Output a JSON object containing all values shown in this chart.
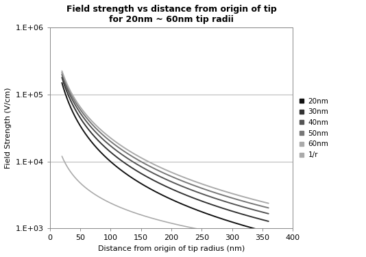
{
  "title_line1": "Field strength vs distance from origin of tip",
  "title_line2": "for 20nm ~ 60nm tip radii",
  "xlabel": "Distance from origin of tip radius (nm)",
  "ylabel": "Field Strength (V/cm)",
  "xlim": [
    0,
    400
  ],
  "ylim": [
    1000.0,
    1000000.0
  ],
  "x_ticks": [
    0,
    50,
    100,
    150,
    200,
    250,
    300,
    350,
    400
  ],
  "y_ticks": [
    1000,
    10000,
    100000,
    1000000
  ],
  "y_tick_labels": [
    "1.E+03",
    "1.E+04",
    "1.E+05",
    "1.E+06"
  ],
  "legend_labels": [
    "20nm",
    "30nm",
    "40nm",
    "50nm",
    "60nm",
    "1/r"
  ],
  "tip_radii_nm": [
    20,
    30,
    40,
    50,
    60
  ],
  "background_color": "#ffffff",
  "line_colors_dark_to_light": [
    "#111111",
    "#333333",
    "#555555",
    "#777777",
    "#aaaaaa"
  ],
  "ref_line_color": "#aaaaaa",
  "line_width": 1.4,
  "x_start": 20,
  "x_end": 360,
  "voltage_scale": 6000000,
  "ref_scale": 240000,
  "figsize": [
    5.34,
    3.75
  ],
  "dpi": 100
}
